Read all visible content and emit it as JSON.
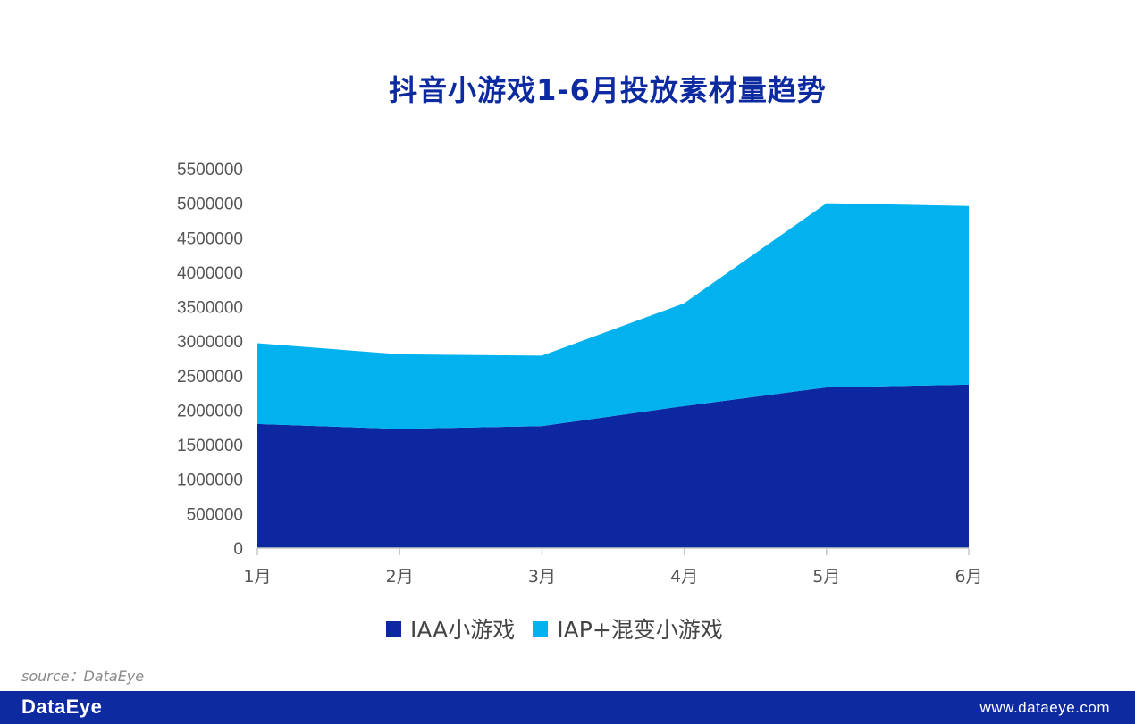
{
  "title": "抖音小游戏1-6月投放素材量趋势",
  "source": "source：DataEye",
  "footer": {
    "logo": "DataEye",
    "url": "www.dataeye.com"
  },
  "colors": {
    "iaa": "#0c27a0",
    "iap": "#02b2ee",
    "title": "#0d2aa0",
    "footer_bg": "#0d2aa0"
  },
  "chart_data": {
    "type": "area",
    "stacked": true,
    "title": "抖音小游戏1-6月投放素材量趋势",
    "categories": [
      "1月",
      "2月",
      "3月",
      "4月",
      "5月",
      "6月"
    ],
    "series": [
      {
        "name": "IAA小游戏",
        "values": [
          1800000,
          1730000,
          1770000,
          2060000,
          2330000,
          2370000
        ],
        "color": "#0c27a0"
      },
      {
        "name": "IAP+混变小游戏",
        "values": [
          1170000,
          1080000,
          1020000,
          1490000,
          2670000,
          2590000
        ],
        "color": "#02b2ee"
      }
    ],
    "ylim": [
      0,
      5500000
    ],
    "yticks": [
      0,
      500000,
      1000000,
      1500000,
      2000000,
      2500000,
      3000000,
      3500000,
      4000000,
      4500000,
      5000000,
      5500000
    ],
    "legend_position": "bottom",
    "grid": false
  }
}
